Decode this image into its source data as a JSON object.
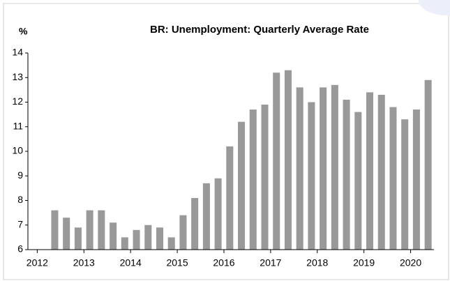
{
  "chart_data": {
    "type": "bar",
    "title": "BR: Unemployment: Quarterly Average Rate",
    "y_label": "%",
    "x": [
      2012.375,
      2012.625,
      2012.875,
      2013.125,
      2013.375,
      2013.625,
      2013.875,
      2014.125,
      2014.375,
      2014.625,
      2014.875,
      2015.125,
      2015.375,
      2015.625,
      2015.875,
      2016.125,
      2016.375,
      2016.625,
      2016.875,
      2017.125,
      2017.375,
      2017.625,
      2017.875,
      2018.125,
      2018.375,
      2018.625,
      2018.875,
      2019.125,
      2019.375,
      2019.625,
      2019.875,
      2020.125,
      2020.375
    ],
    "values": [
      7.6,
      7.3,
      6.9,
      7.6,
      7.6,
      7.1,
      6.5,
      6.8,
      7.0,
      6.9,
      6.5,
      7.4,
      8.1,
      8.7,
      8.9,
      10.2,
      11.2,
      11.7,
      11.9,
      13.2,
      13.3,
      12.6,
      12.0,
      12.6,
      12.7,
      12.1,
      11.6,
      12.4,
      12.3,
      11.8,
      11.3,
      11.7,
      12.9
    ],
    "color": "#999999",
    "xlim": [
      2011.8,
      2020.5
    ],
    "xticks": [
      2012,
      2013,
      2014,
      2015,
      2016,
      2017,
      2018,
      2019,
      2020
    ],
    "ylim": [
      6,
      14
    ],
    "yticks": [
      6,
      7,
      8,
      9,
      10,
      11,
      12,
      13,
      14
    ]
  }
}
